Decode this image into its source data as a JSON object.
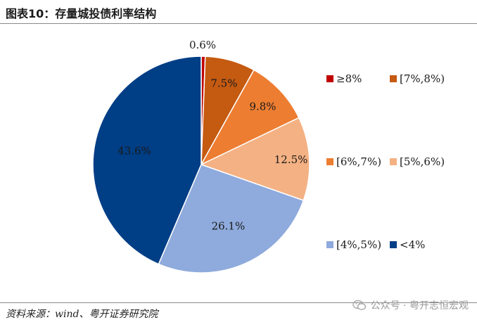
{
  "title": "图表10：存量城投债利率结构",
  "source": "资料来源：wind、粤开证券研究院",
  "watermark": "公众号 · 粤开志恒宏观",
  "chart_data": {
    "type": "pie",
    "title": "",
    "start_angle_deg": 0,
    "direction": "clockwise",
    "legend_placement": "right",
    "slices": [
      {
        "label": "≥8%",
        "value": 0.6,
        "display": "0.6%",
        "color": "#c00000"
      },
      {
        "label": "[7%,8%)",
        "value": 7.5,
        "display": "7.5%",
        "color": "#c55a11"
      },
      {
        "label": "[6%,7%)",
        "value": 9.8,
        "display": "9.8%",
        "color": "#ed7d31"
      },
      {
        "label": "[5%,6%)",
        "value": 12.5,
        "display": "12.5%",
        "color": "#f4b183"
      },
      {
        "label": "[4%,5%)",
        "value": 26.1,
        "display": "26.1%",
        "color": "#8faadc"
      },
      {
        "label": "<4%",
        "value": 43.6,
        "display": "43.6%",
        "color": "#003e86"
      }
    ]
  }
}
